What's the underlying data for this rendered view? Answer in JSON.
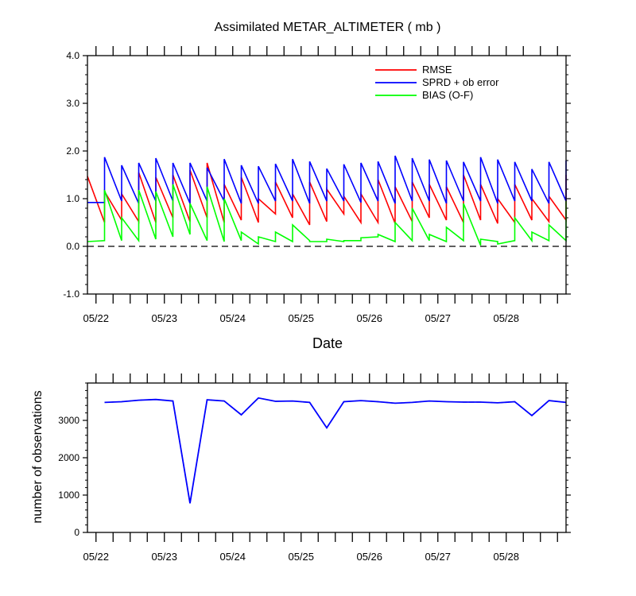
{
  "chart_data": [
    {
      "type": "line",
      "title": "Assimilated METAR_ALTIMETER ( mb )",
      "xlabel": "Date",
      "ylabel": "",
      "xlim": [
        0,
        7.0
      ],
      "ylim": [
        -1.0,
        4.0
      ],
      "yticks": [
        -1.0,
        0.0,
        1.0,
        2.0,
        3.0,
        4.0
      ],
      "ytick_labels": [
        "-1.0",
        "0.0",
        "1.0",
        "2.0",
        "3.0",
        "4.0"
      ],
      "xticks": [
        0.125,
        1.125,
        2.125,
        3.125,
        4.125,
        5.125,
        6.125
      ],
      "xtick_labels": [
        "05/22",
        "05/23",
        "05/24",
        "05/25",
        "05/26",
        "05/27",
        "05/28"
      ],
      "reference_line": 0.0,
      "legend": [
        "RMSE",
        "SPRD + ob error",
        "BIAS (O-F)"
      ],
      "legend_position": "top-right",
      "x_step": 0.25,
      "series": [
        {
          "name": "RMSE",
          "color": "#ff0000",
          "forecast": [
            0.5,
            0.55,
            0.52,
            0.5,
            0.6,
            0.52,
            0.6,
            0.5,
            0.55,
            0.5,
            0.68,
            0.6,
            0.45,
            0.52,
            0.68,
            0.5,
            0.5,
            0.48,
            0.52,
            0.6,
            0.55,
            0.5,
            0.55,
            0.48,
            0.5,
            0.55,
            0.52,
            0.55
          ],
          "analysis": [
            1.47,
            1.15,
            1.1,
            1.55,
            1.45,
            1.5,
            1.6,
            1.75,
            1.3,
            1.45,
            1.0,
            1.35,
            1.1,
            1.35,
            1.2,
            1.05,
            1.1,
            1.4,
            1.25,
            1.35,
            1.3,
            1.25,
            1.5,
            1.3,
            1.0,
            1.3,
            1.0,
            1.05,
            1.5
          ]
        },
        {
          "name": "SPRD + ob error",
          "color": "#0000ff",
          "forecast": [
            0.92,
            0.95,
            0.9,
            0.95,
            0.95,
            0.9,
            0.95,
            0.95,
            0.9,
            0.9,
            0.95,
            0.95,
            0.9,
            0.95,
            0.95,
            0.92,
            0.95,
            0.9,
            0.95,
            0.95,
            0.9,
            0.95,
            0.95,
            0.9,
            0.95,
            0.95,
            0.9,
            0.95
          ],
          "analysis": [
            0.92,
            1.87,
            1.7,
            1.75,
            1.85,
            1.75,
            1.75,
            1.65,
            1.83,
            1.7,
            1.68,
            1.73,
            1.83,
            1.78,
            1.63,
            1.72,
            1.75,
            1.78,
            1.9,
            1.85,
            1.82,
            1.8,
            1.77,
            1.87,
            1.82,
            1.77,
            1.62,
            1.77,
            1.8
          ]
        },
        {
          "name": "BIAS (O-F)",
          "color": "#00ff00",
          "forecast": [
            0.12,
            0.12,
            0.12,
            0.15,
            0.2,
            0.25,
            0.12,
            0.1,
            0.12,
            0.05,
            0.1,
            0.1,
            0.12,
            0.1,
            0.1,
            0.12,
            0.2,
            0.1,
            0.12,
            0.12,
            0.1,
            0.12,
            0.02,
            0.1,
            0.12,
            0.12,
            0.12,
            0.12
          ],
          "analysis": [
            0.1,
            1.18,
            0.6,
            1.18,
            1.15,
            1.3,
            0.9,
            1.25,
            1.0,
            0.3,
            0.2,
            0.3,
            0.45,
            0.1,
            0.15,
            0.12,
            0.18,
            0.25,
            0.5,
            0.8,
            0.25,
            0.4,
            0.9,
            0.15,
            0.05,
            0.6,
            0.3,
            0.45,
            0.95
          ]
        }
      ]
    },
    {
      "type": "line",
      "title": "",
      "xlabel": "",
      "ylabel": "number of observations",
      "xlim": [
        0,
        7.0
      ],
      "ylim": [
        0,
        4000
      ],
      "yticks": [
        0,
        1000,
        2000,
        3000
      ],
      "ytick_labels": [
        "0",
        "1000",
        "2000",
        "3000"
      ],
      "xticks": [
        0.125,
        1.125,
        2.125,
        3.125,
        4.125,
        5.125,
        6.125
      ],
      "xtick_labels": [
        "05/22",
        "05/23",
        "05/24",
        "05/25",
        "05/26",
        "05/27",
        "05/28"
      ],
      "x_step": 0.25,
      "series": [
        {
          "name": "observations",
          "color": "#0000ff",
          "values": [
            3480,
            3500,
            3540,
            3560,
            3520,
            780,
            3550,
            3520,
            3150,
            3600,
            3510,
            3520,
            3480,
            2800,
            3500,
            3530,
            3500,
            3460,
            3480,
            3520,
            3500,
            3490,
            3490,
            3470,
            3500,
            3130,
            3530,
            3480
          ]
        }
      ]
    }
  ]
}
